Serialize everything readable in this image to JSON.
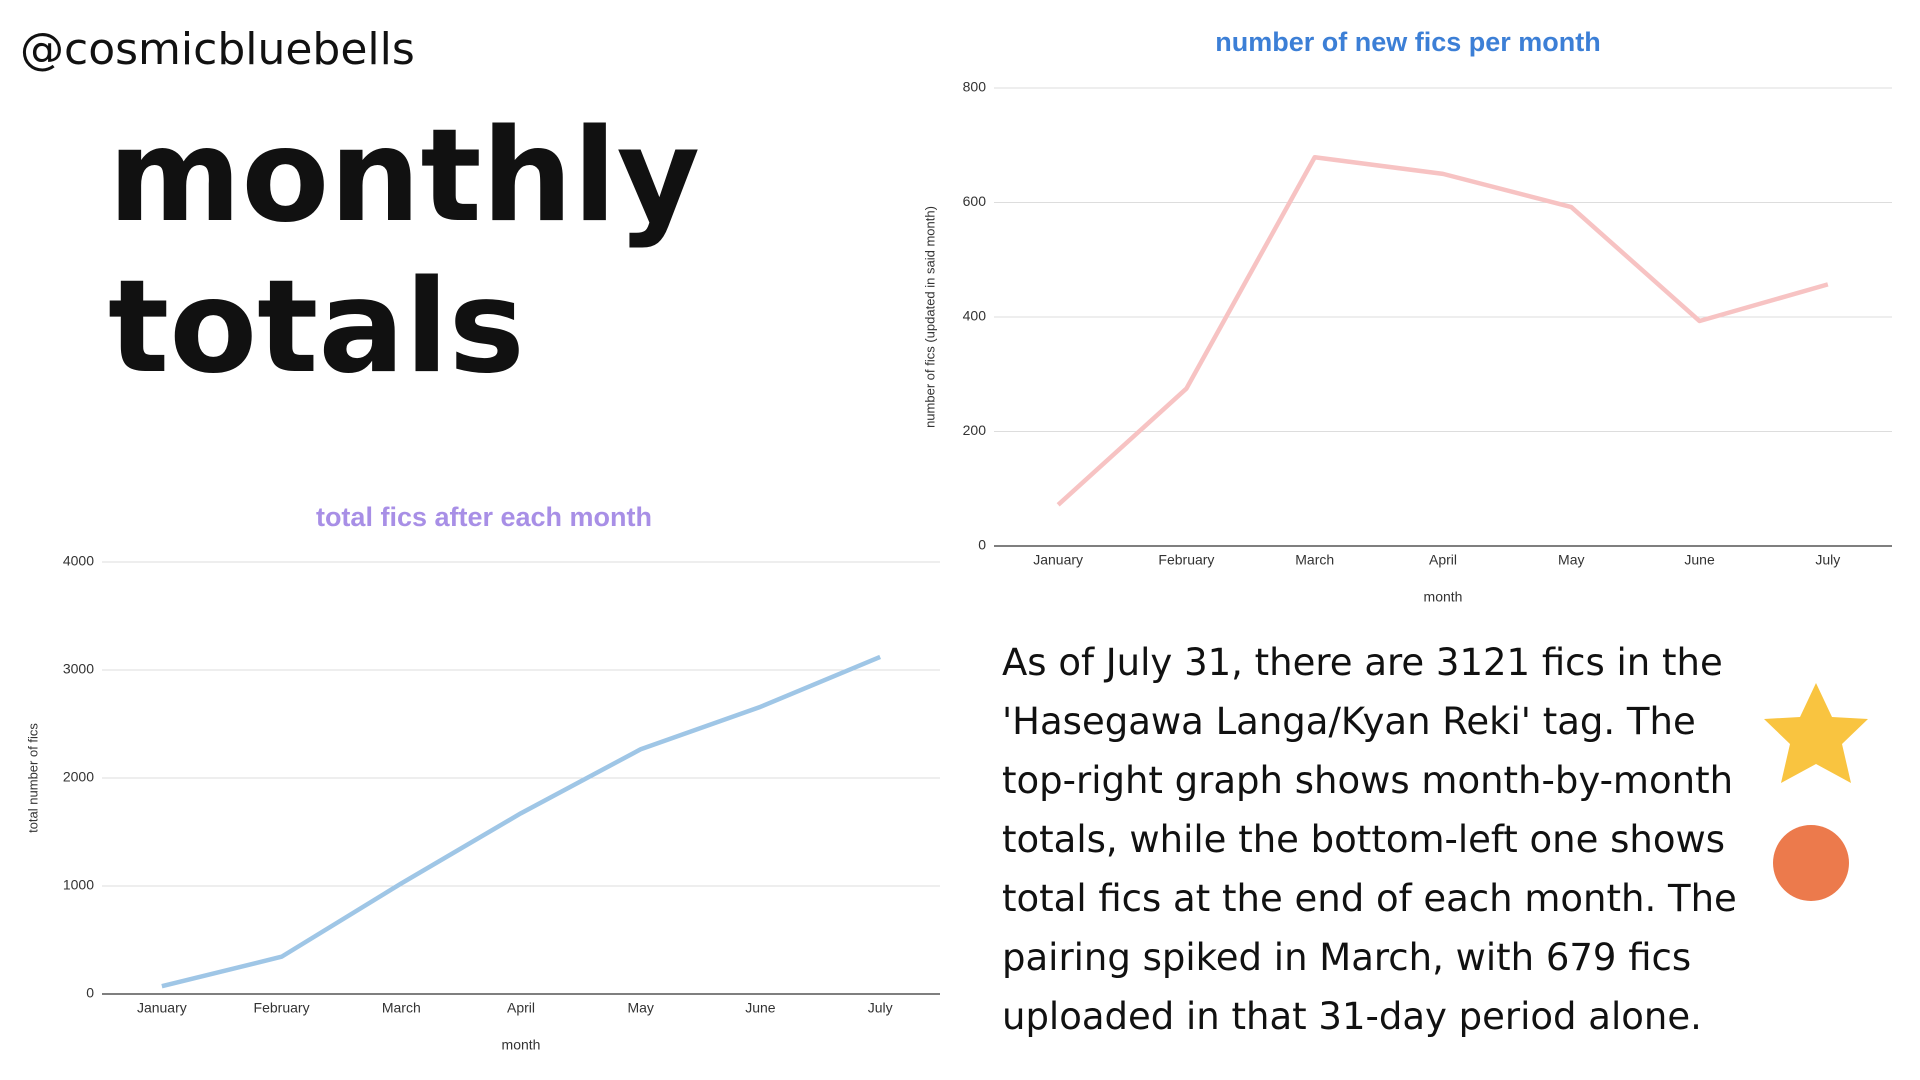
{
  "handle": "@cosmicbluebells",
  "heading": [
    "monthly",
    "totals"
  ],
  "paragraph": [
    "As of July 31, there are 3121 fics in the",
    "'Hasegawa Langa/Kyan Reki' tag. The",
    "top-right graph shows month-by-month",
    "totals, while the bottom-left one shows",
    "total fics at the end of each month. The",
    "pairing spiked in March, with 679 fics",
    "uploaded in that 31-day period alone."
  ],
  "chart_data": [
    {
      "type": "line",
      "title": "number of new fics per month",
      "title_color": "#3c7fd6",
      "x_label": "month",
      "y_label": "number of fics (updated in said month)",
      "categories": [
        "January",
        "February",
        "March",
        "April",
        "May",
        "June",
        "July"
      ],
      "values": [
        72,
        275,
        679,
        650,
        592,
        393,
        457
      ],
      "color": "#f7c3c3",
      "ylim": [
        0,
        800
      ],
      "yticks": [
        0,
        200,
        400,
        600,
        800
      ],
      "grid": true
    },
    {
      "type": "line",
      "title": "total fics after each month",
      "title_color": "#a88fe6",
      "x_label": "month",
      "y_label": "total number of fics",
      "categories": [
        "January",
        "February",
        "March",
        "April",
        "May",
        "June",
        "July"
      ],
      "values": [
        72,
        345,
        1024,
        1674,
        2266,
        2659,
        3121
      ],
      "color": "#9fc6e6",
      "ylim": [
        0,
        4000
      ],
      "yticks": [
        0,
        1000,
        2000,
        3000,
        4000
      ],
      "grid": true
    }
  ]
}
